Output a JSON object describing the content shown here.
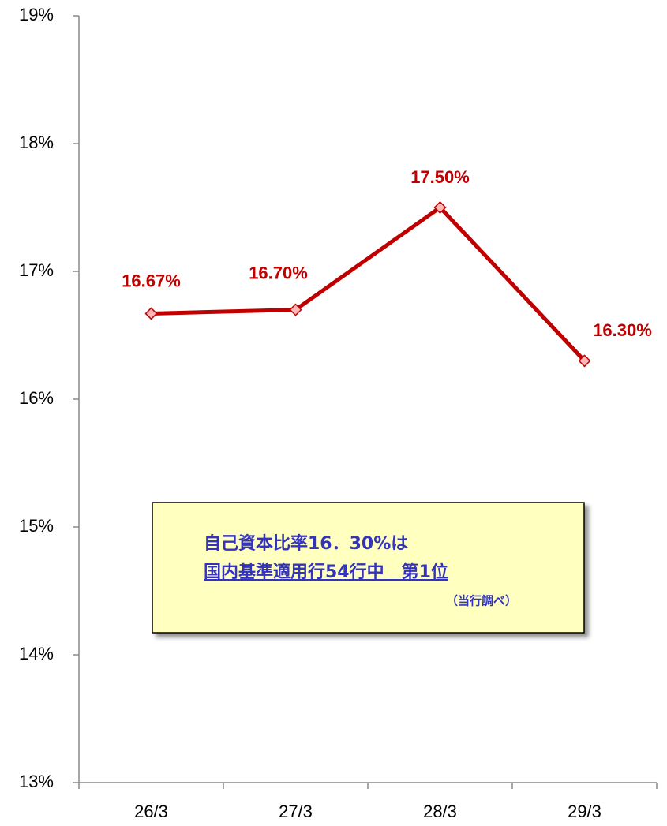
{
  "chart_data": {
    "type": "line",
    "categories": [
      "26/3",
      "27/3",
      "28/3",
      "29/3"
    ],
    "series": [
      {
        "color": "#c00000",
        "values": [
          16.67,
          16.7,
          17.5,
          16.3
        ],
        "value_labels": [
          "16.67%",
          "16.70%",
          "17.50%",
          "16.30%"
        ]
      }
    ],
    "ylim": [
      13,
      19
    ],
    "yticks": [
      {
        "value": 13,
        "label": "13%"
      },
      {
        "value": 14,
        "label": "14%"
      },
      {
        "value": 15,
        "label": "15%"
      },
      {
        "value": 16,
        "label": "16%"
      },
      {
        "value": 17,
        "label": "17%"
      },
      {
        "value": 18,
        "label": "18%"
      },
      {
        "value": 19,
        "label": "19%"
      }
    ],
    "annotations": [
      "自己資本比率16．30%は",
      "国内基準適用行54行中　第1位",
      "（当行調べ）"
    ]
  }
}
